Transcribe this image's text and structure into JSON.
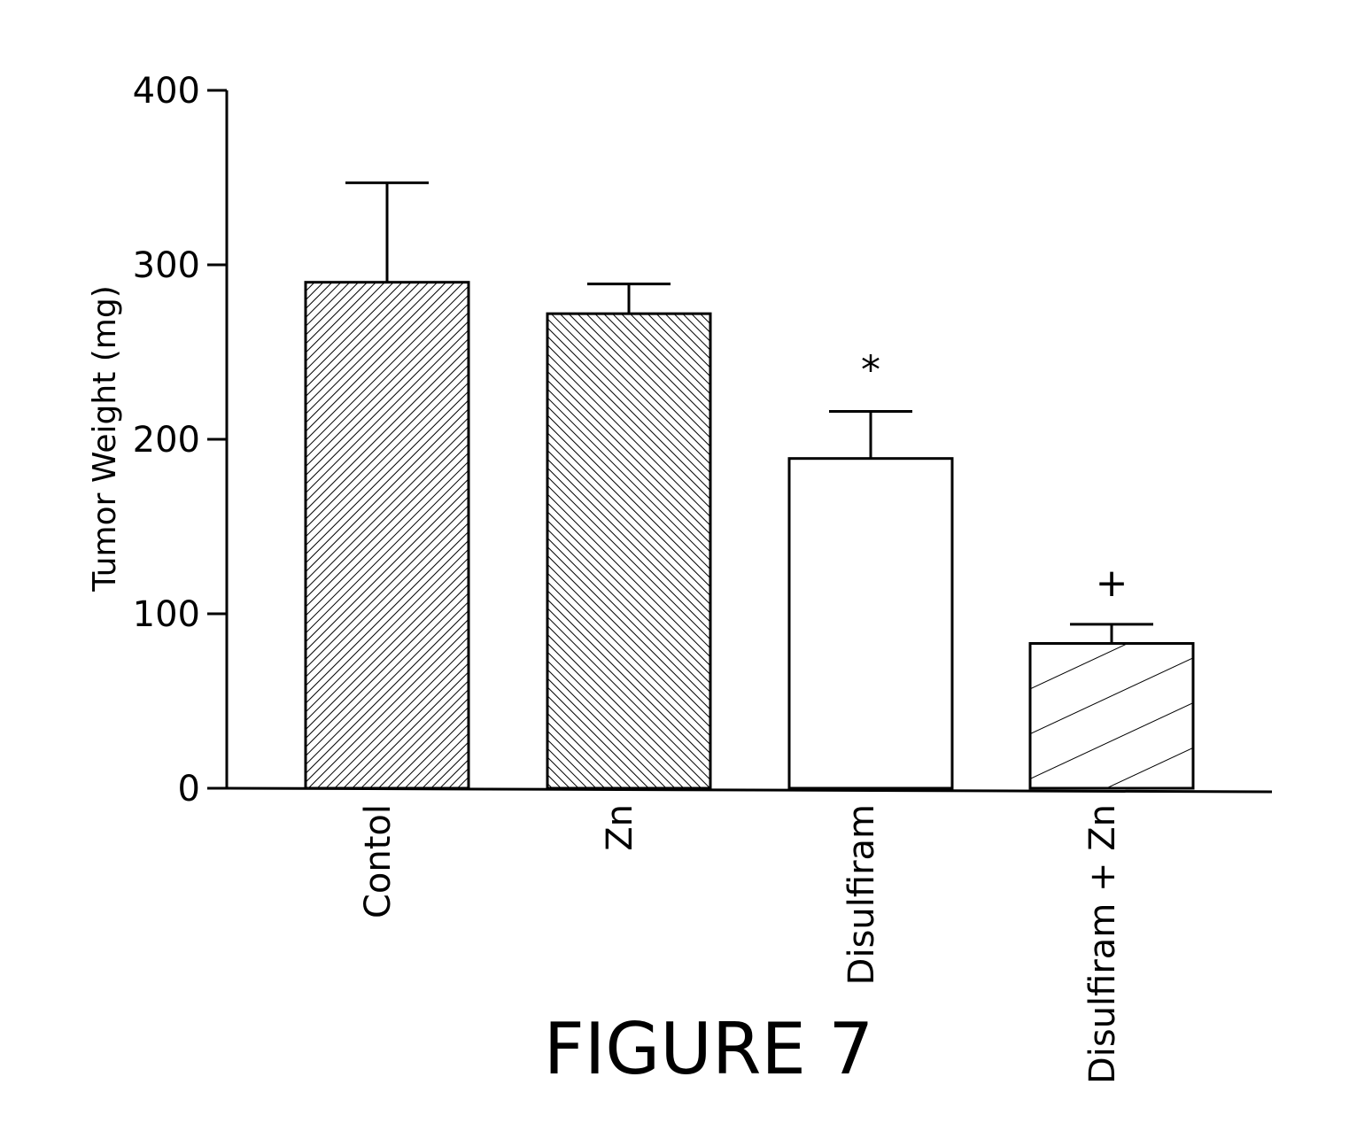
{
  "chart_data": {
    "type": "bar",
    "title": "",
    "xlabel": "",
    "ylabel": "Tumor Weight (mg)",
    "ylim": [
      0,
      400
    ],
    "yticks": [
      0,
      100,
      200,
      300,
      400
    ],
    "categories": [
      "Contol",
      "Zn",
      "Disulfiram",
      "Disulfiram + Zn"
    ],
    "values": [
      290,
      272,
      189,
      83
    ],
    "error_upper": [
      347,
      289,
      216,
      94
    ],
    "annotations": [
      "",
      "",
      "*",
      "+"
    ],
    "fills": [
      "dense-hatch-right",
      "dense-hatch-left",
      "none",
      "sparse-hatch-right"
    ],
    "grid": false,
    "legend": "none"
  },
  "figure": {
    "caption": "FIGURE 7"
  }
}
